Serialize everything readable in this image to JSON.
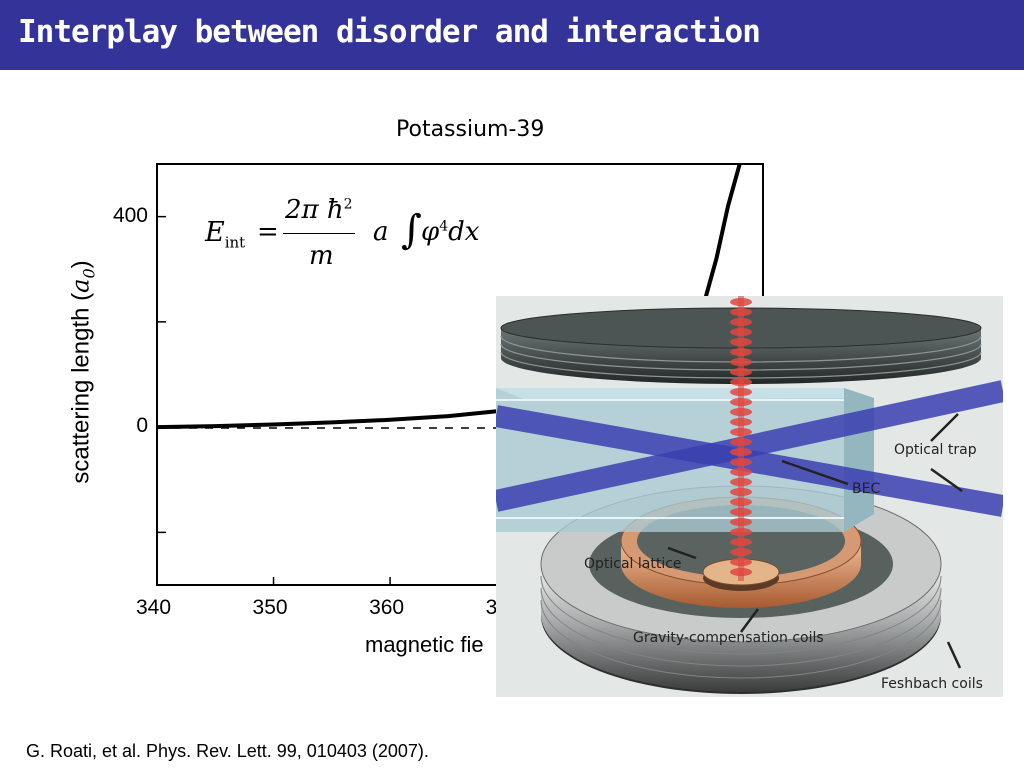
{
  "slide": {
    "title": "Interplay between disorder and interaction",
    "citation": "G. Roati, et al. Phys. Rev. Lett. 99, 010403 (2007)."
  },
  "colors": {
    "title_bar": "#333399",
    "laser_beams": "#3b3fb0",
    "lattice": "#d84a4a",
    "coil_copper": "#c9825a"
  },
  "formula": {
    "lhs": "E",
    "lhs_sub": "int",
    "numerator": "2π ħ",
    "numerator_exp": "2",
    "denominator": "m",
    "rhs_a": "a",
    "rhs_phi": "φ",
    "rhs_exp": "4",
    "rhs_dx": "dx"
  },
  "chart_data": {
    "type": "line",
    "title": "Potassium-39",
    "xlabel": "magnetic fie",
    "ylabel_text": "scattering length (",
    "ylabel_unit": "a",
    "ylabel_unit_sub": "0",
    "ylabel_close": ")",
    "x_ticks": [
      "340",
      "350",
      "360",
      "370",
      "3"
    ],
    "y_ticks": [
      "400",
      "0"
    ],
    "xlim": [
      340,
      392
    ],
    "ylim": [
      -300,
      500
    ],
    "series": [
      {
        "x": [
          340,
          345,
          350,
          355,
          360,
          365,
          370,
          374,
          378,
          381,
          383,
          385,
          387,
          388,
          389,
          390
        ],
        "y": [
          0,
          2,
          5,
          9,
          14,
          21,
          32,
          45,
          66,
          92,
          120,
          165,
          240,
          320,
          420,
          500
        ]
      }
    ]
  },
  "diagram": {
    "callouts": {
      "optical_trap": "Optical trap",
      "bec": "BEC",
      "optical_lattice": "Optical lattice",
      "gravity_coils": "Gravity-compensation coils",
      "feshbach_coils": "Feshbach coils"
    }
  }
}
